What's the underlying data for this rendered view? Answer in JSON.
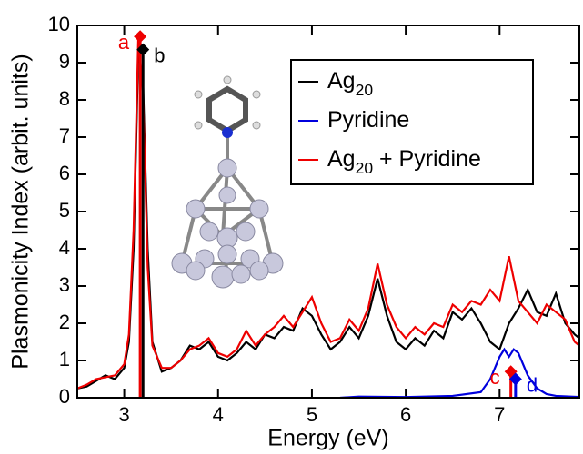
{
  "chart_data": {
    "type": "line",
    "xlabel": "Energy (eV)",
    "ylabel": "Plasmonicity Index (arbit. units)",
    "xlim": [
      2.5,
      7.85
    ],
    "ylim": [
      0,
      10
    ],
    "xticks": [
      3,
      4,
      5,
      6,
      7
    ],
    "yticks": [
      0,
      1,
      2,
      3,
      4,
      5,
      6,
      7,
      8,
      9,
      10
    ],
    "legend": "upper right",
    "series": [
      {
        "name": "Ag20",
        "color": "#000000",
        "x": [
          2.5,
          2.6,
          2.7,
          2.8,
          2.9,
          3.0,
          3.05,
          3.1,
          3.15,
          3.2,
          3.25,
          3.3,
          3.4,
          3.5,
          3.6,
          3.7,
          3.8,
          3.9,
          4.0,
          4.1,
          4.2,
          4.3,
          4.4,
          4.5,
          4.6,
          4.7,
          4.8,
          4.9,
          5.0,
          5.1,
          5.2,
          5.3,
          5.4,
          5.5,
          5.6,
          5.7,
          5.8,
          5.9,
          6.0,
          6.1,
          6.2,
          6.3,
          6.4,
          6.5,
          6.6,
          6.7,
          6.8,
          6.9,
          7.0,
          7.1,
          7.2,
          7.3,
          7.4,
          7.5,
          7.6,
          7.7,
          7.8,
          7.85
        ],
        "values": [
          0.25,
          0.3,
          0.45,
          0.6,
          0.5,
          0.8,
          1.5,
          4,
          9.3,
          8.5,
          4,
          1.5,
          0.7,
          0.8,
          1.0,
          1.4,
          1.3,
          1.5,
          1.1,
          1.0,
          1.2,
          1.5,
          1.3,
          1.7,
          1.6,
          1.9,
          1.8,
          2.4,
          2.2,
          1.7,
          1.3,
          1.5,
          1.9,
          1.6,
          2.2,
          3.2,
          2.2,
          1.5,
          1.3,
          1.6,
          1.4,
          1.8,
          1.6,
          2.3,
          2.1,
          2.4,
          2.0,
          1.5,
          1.3,
          2.0,
          2.4,
          2.9,
          2.3,
          2.2,
          2.8,
          2.0,
          1.7,
          1.6
        ]
      },
      {
        "name": "Pyridine",
        "color": "#0000dd",
        "x": [
          5.3,
          5.5,
          6.0,
          6.5,
          6.8,
          6.9,
          7.0,
          7.05,
          7.1,
          7.15,
          7.2,
          7.3,
          7.4,
          7.5,
          7.6,
          7.85
        ],
        "values": [
          0,
          0.03,
          0.02,
          0.05,
          0.15,
          0.5,
          1.1,
          1.3,
          1.1,
          1.3,
          1.2,
          0.6,
          0.25,
          0.1,
          0.05,
          0.02
        ]
      },
      {
        "name": "Ag20 + Pyridine",
        "color": "#ee0000",
        "x": [
          2.5,
          2.6,
          2.7,
          2.8,
          2.9,
          3.0,
          3.05,
          3.1,
          3.15,
          3.2,
          3.25,
          3.3,
          3.4,
          3.5,
          3.6,
          3.7,
          3.8,
          3.9,
          4.0,
          4.1,
          4.2,
          4.3,
          4.4,
          4.5,
          4.6,
          4.7,
          4.8,
          4.9,
          5.0,
          5.1,
          5.2,
          5.3,
          5.4,
          5.5,
          5.6,
          5.7,
          5.8,
          5.9,
          6.0,
          6.1,
          6.2,
          6.3,
          6.4,
          6.5,
          6.6,
          6.7,
          6.8,
          6.9,
          7.0,
          7.1,
          7.2,
          7.3,
          7.4,
          7.5,
          7.6,
          7.7,
          7.8,
          7.85
        ],
        "values": [
          0.25,
          0.35,
          0.5,
          0.55,
          0.6,
          0.9,
          1.7,
          4.5,
          9.7,
          8.2,
          3.5,
          1.4,
          0.8,
          0.8,
          1.0,
          1.3,
          1.4,
          1.6,
          1.2,
          1.1,
          1.3,
          1.8,
          1.4,
          1.7,
          1.9,
          2.2,
          1.9,
          2.3,
          2.7,
          2.0,
          1.5,
          1.6,
          2.1,
          1.8,
          2.4,
          3.6,
          2.5,
          1.9,
          1.6,
          1.9,
          1.7,
          2.0,
          1.9,
          2.5,
          2.3,
          2.6,
          2.5,
          2.9,
          2.6,
          3.8,
          2.6,
          2.3,
          2.0,
          2.5,
          2.3,
          2.1,
          1.5,
          1.4
        ]
      }
    ],
    "markers": [
      {
        "label": "a",
        "x": 3.17,
        "y": 9.7,
        "color": "#ee0000",
        "side": "left"
      },
      {
        "label": "b",
        "x": 3.2,
        "y": 9.35,
        "color": "#000000",
        "side": "right"
      },
      {
        "label": "c",
        "x": 7.12,
        "y": 0.7,
        "color": "#ee0000",
        "side": "left"
      },
      {
        "label": "d",
        "x": 7.17,
        "y": 0.5,
        "color": "#0000dd",
        "side": "right"
      }
    ]
  }
}
